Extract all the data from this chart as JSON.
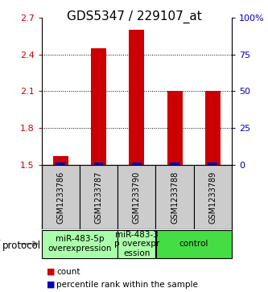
{
  "title": "GDS5347 / 229107_at",
  "samples": [
    "GSM1233786",
    "GSM1233787",
    "GSM1233790",
    "GSM1233788",
    "GSM1233789"
  ],
  "red_values": [
    1.57,
    2.45,
    2.6,
    2.1,
    2.1
  ],
  "blue_values": [
    1.5,
    1.5,
    1.5,
    1.5,
    1.5
  ],
  "blue_pct": [
    1.0,
    1.5,
    1.5,
    1.5,
    1.5
  ],
  "ylim": [
    1.5,
    2.7
  ],
  "yticks": [
    1.5,
    1.8,
    2.1,
    2.4,
    2.7
  ],
  "ytick_labels": [
    "1.5",
    "1.8",
    "2.1",
    "2.4",
    "2.7"
  ],
  "y2ticks": [
    0,
    25,
    50,
    75,
    100
  ],
  "y2tick_labels": [
    "0",
    "25",
    "50",
    "75",
    "100%"
  ],
  "bar_width": 0.4,
  "blue_bar_width": 0.25,
  "red_color": "#cc0000",
  "blue_color": "#0000bb",
  "gray_bg": "#cccccc",
  "light_green": "#aaffaa",
  "bright_green": "#44dd44",
  "plot_bg": "#ffffff",
  "title_fontsize": 11,
  "tick_fontsize": 8,
  "sample_label_fontsize": 7,
  "group_label_fontsize": 7.5,
  "group_defs": [
    {
      "span": [
        0,
        1
      ],
      "color": "#aaffaa",
      "label": "miR-483-5p\noverexpression"
    },
    {
      "span": [
        2,
        2
      ],
      "color": "#aaffaa",
      "label": "miR-483-3\np overexpr\nession"
    },
    {
      "span": [
        3,
        4
      ],
      "color": "#44dd44",
      "label": "control"
    }
  ]
}
